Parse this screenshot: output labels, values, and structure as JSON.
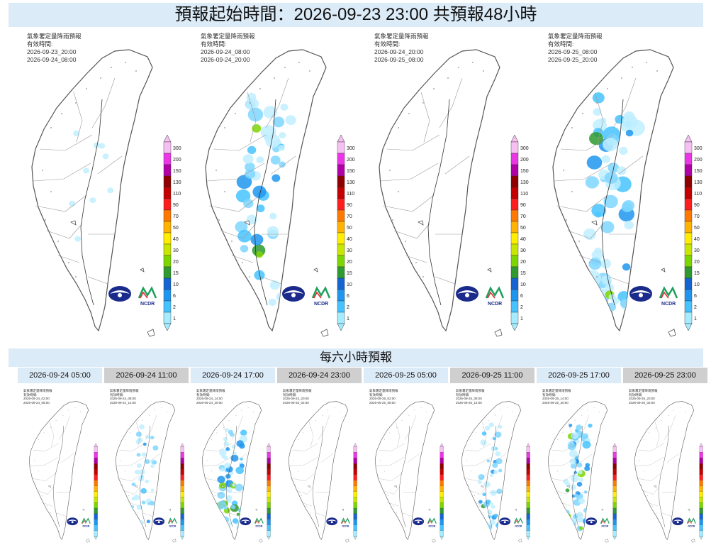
{
  "header": {
    "title": "預報起始時間：2026-09-23 23:00  共預報48小時"
  },
  "big_panels": [
    {
      "title": "氣象署定量降雨預報",
      "valid_label": "有效時間:",
      "start": "2026-09-23_20:00",
      "end": "2026-09-24_08:00",
      "rain_level": 0.02
    },
    {
      "title": "氣象署定量降雨預報",
      "valid_label": "有效時間:",
      "start": "2026-09-24_08:00",
      "end": "2026-09-24_20:00",
      "rain_level": 0.65
    },
    {
      "title": "氣象署定量降雨預報",
      "valid_label": "有效時間:",
      "start": "2026-09-24_20:00",
      "end": "2026-09-25_08:00",
      "rain_level": 0.0
    },
    {
      "title": "氣象署定量降雨預報",
      "valid_label": "有效時間:",
      "start": "2026-09-25_08:00",
      "end": "2026-09-25_20:00",
      "rain_level": 0.85
    }
  ],
  "legend": {
    "labels": [
      "300",
      "200",
      "150",
      "130",
      "110",
      "90",
      "70",
      "50",
      "40",
      "30",
      "20",
      "15",
      "10",
      "6",
      "2",
      "1"
    ],
    "colors": [
      "#f7c0f2",
      "#ec35e6",
      "#b100a8",
      "#8f0000",
      "#c40000",
      "#ff1e1e",
      "#ff7800",
      "#ffb200",
      "#ffee00",
      "#c8e600",
      "#7dd600",
      "#2f9a2f",
      "#1464d2",
      "#1e96f0",
      "#46c3ff",
      "#a6ecff"
    ]
  },
  "logos": {
    "cwa": "CWA",
    "ncdr": "NCDR"
  },
  "six_hour": {
    "title": "每六小時預報",
    "tabs": [
      "2026-09-24 05:00",
      "2026-09-24 11:00",
      "2026-09-24 17:00",
      "2026-09-24 23:00",
      "2026-09-25 05:00",
      "2026-09-25 11:00",
      "2026-09-25 17:00",
      "2026-09-25 23:00"
    ],
    "panels": [
      {
        "start": "2026-09-24_02:00",
        "end": "2026-09-24_08:00",
        "rain_level": 0.0
      },
      {
        "start": "2026-09-24_08:00",
        "end": "2026-09-24_14:00",
        "rain_level": 0.45
      },
      {
        "start": "2026-09-24_14:00",
        "end": "2026-09-24_20:00",
        "rain_level": 0.8
      },
      {
        "start": "2026-09-24_20:00",
        "end": "2026-09-25_02:00",
        "rain_level": 0.0
      },
      {
        "start": "2026-09-25_02:00",
        "end": "2026-09-25_08:00",
        "rain_level": 0.0
      },
      {
        "start": "2026-09-25_08:00",
        "end": "2026-09-25_14:00",
        "rain_level": 0.55
      },
      {
        "start": "2026-09-25_14:00",
        "end": "2026-09-25_20:00",
        "rain_level": 0.8
      },
      {
        "start": "2026-09-25_20:00",
        "end": "2026-09-26_02:00",
        "rain_level": 0.0
      }
    ]
  }
}
